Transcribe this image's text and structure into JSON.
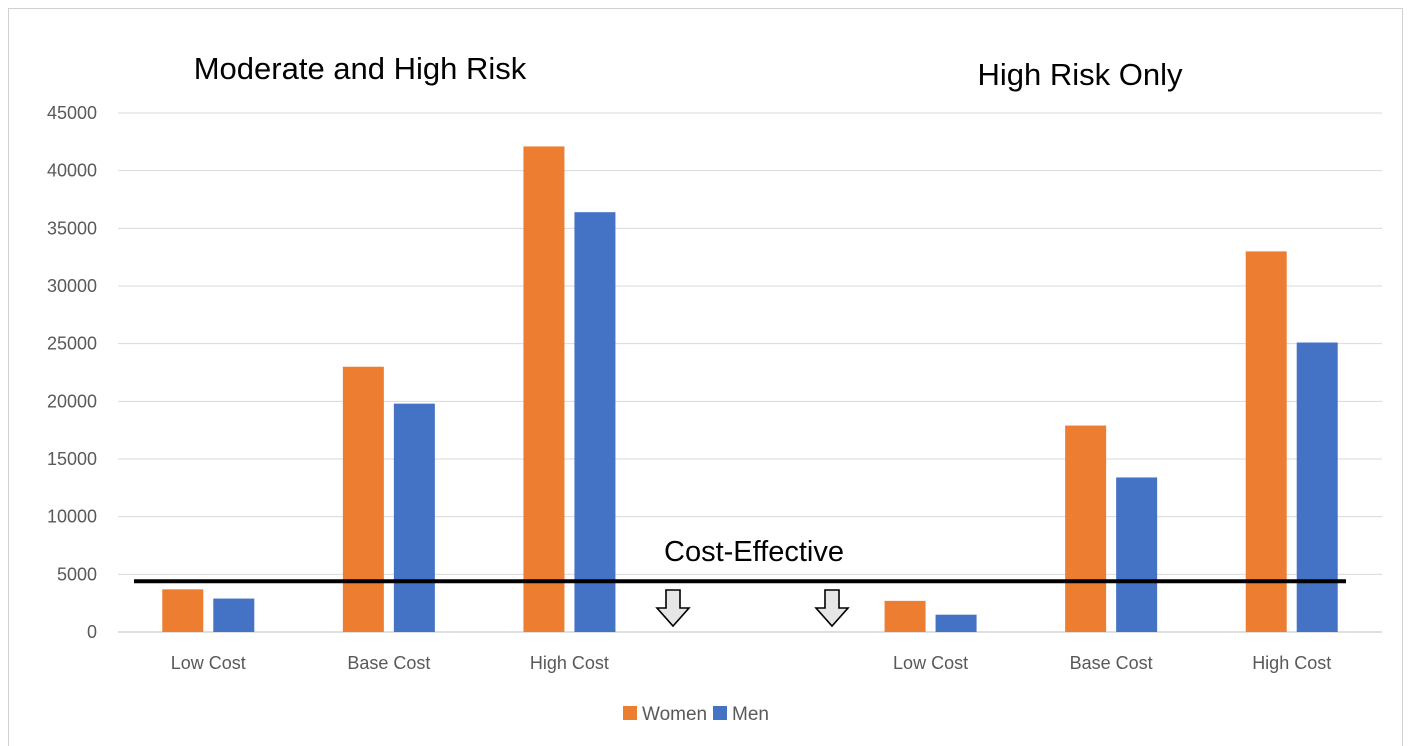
{
  "chart_data": {
    "type": "bar",
    "group_titles": [
      "Moderate and High Risk",
      "High Risk Only"
    ],
    "categories": [
      "Low Cost",
      "Base Cost",
      "High Cost",
      "Low Cost",
      "Base Cost",
      "High Cost"
    ],
    "series": [
      {
        "name": "Women",
        "color": "#ED7D31",
        "values": [
          3700,
          23000,
          42100,
          2700,
          17900,
          33000
        ]
      },
      {
        "name": "Men",
        "color": "#4472C4",
        "values": [
          2900,
          19800,
          36400,
          1500,
          13400,
          25100
        ]
      }
    ],
    "ylim": [
      0,
      45000
    ],
    "yticks": [
      "0",
      "5000",
      "10000",
      "15000",
      "20000",
      "25000",
      "30000",
      "35000",
      "40000",
      "45000"
    ],
    "grid": true,
    "legend_position": "bottom",
    "annotation": {
      "text": "Cost-Effective",
      "threshold": 4400,
      "arrow_icon": "down-arrow-icon"
    }
  }
}
